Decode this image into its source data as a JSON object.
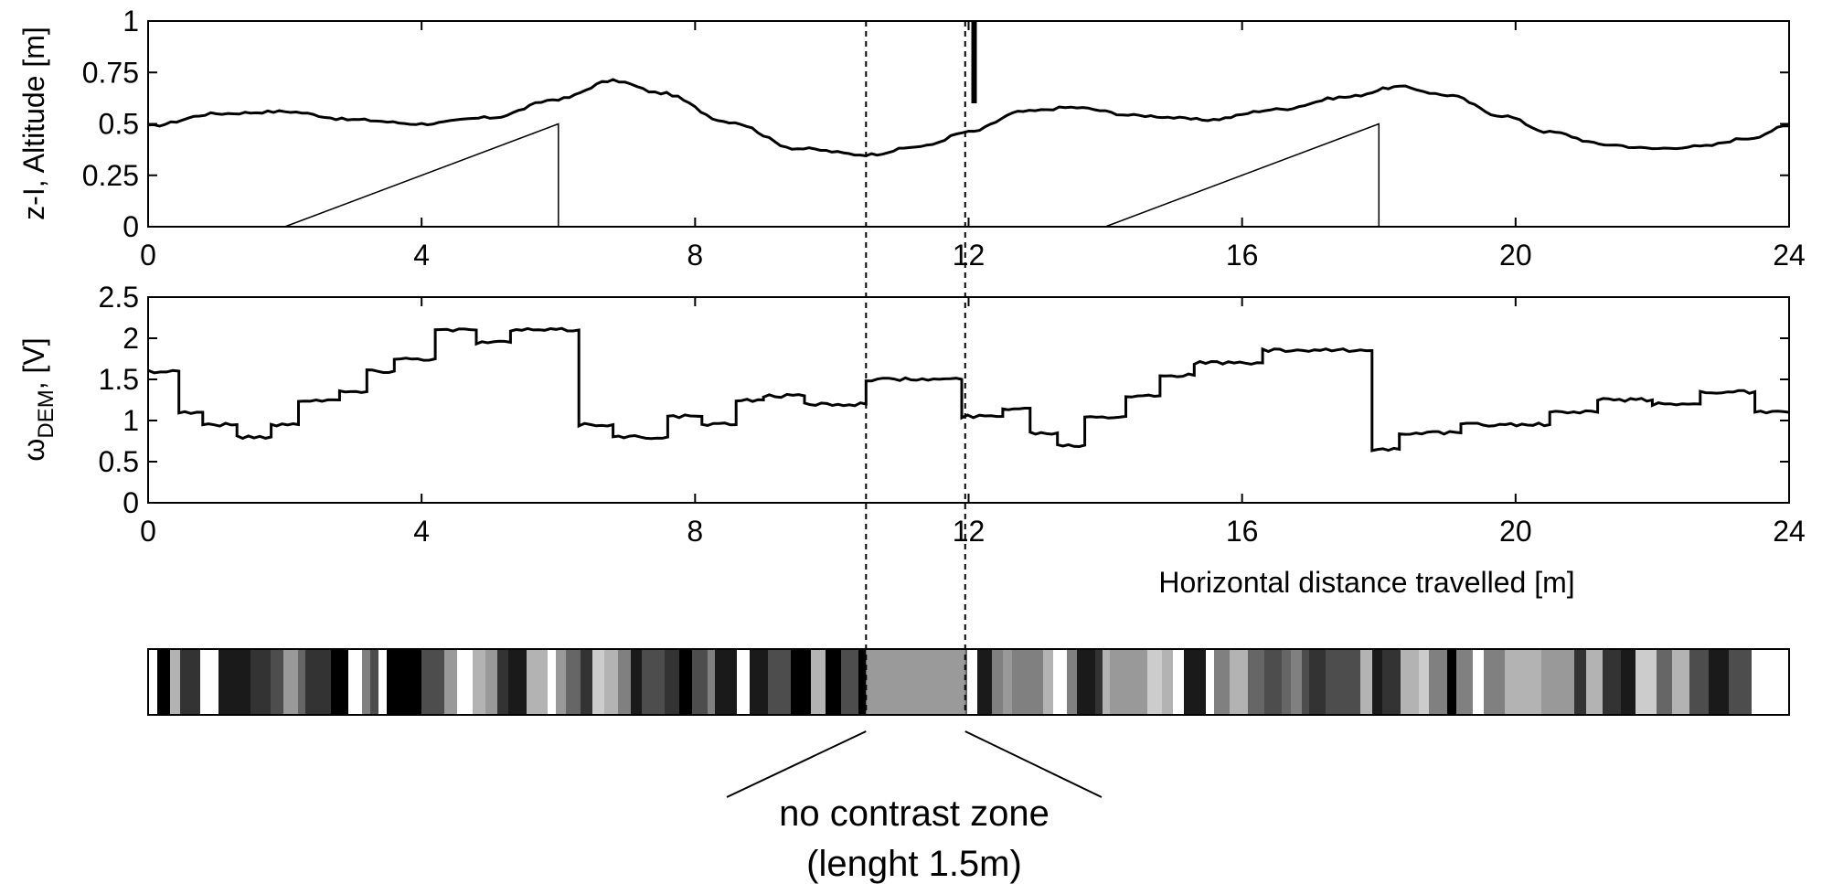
{
  "chart_data": [
    {
      "type": "line",
      "ylabel": "z-I, Altitude [m]",
      "xlim": [
        0,
        24
      ],
      "ylim": [
        0,
        1
      ],
      "x_ticks": [
        "0",
        "4",
        "8",
        "12",
        "16",
        "20",
        "24"
      ],
      "y_ticks": [
        "0",
        "0.25",
        "0.5",
        "0.75",
        "1"
      ],
      "series": [
        {
          "role": "altitude",
          "x": [
            0,
            1,
            2,
            3,
            4,
            5,
            6,
            6.8,
            7.5,
            8.5,
            9.5,
            10.5,
            11.3,
            12,
            12.8,
            13.5,
            14.5,
            15.5,
            16.5,
            17.5,
            18.3,
            19,
            19.8,
            20.5,
            21.3,
            22,
            22.7,
            23.4,
            24
          ],
          "y": [
            0.49,
            0.55,
            0.56,
            0.52,
            0.5,
            0.53,
            0.62,
            0.71,
            0.65,
            0.51,
            0.38,
            0.35,
            0.39,
            0.46,
            0.56,
            0.58,
            0.54,
            0.52,
            0.57,
            0.63,
            0.68,
            0.64,
            0.54,
            0.46,
            0.4,
            0.38,
            0.39,
            0.43,
            0.49
          ]
        },
        {
          "role": "ramp-1",
          "x": [
            2,
            6,
            6
          ],
          "y": [
            0,
            0.5,
            0
          ]
        },
        {
          "role": "ramp-2",
          "x": [
            14,
            18,
            18
          ],
          "y": [
            0,
            0.5,
            0
          ]
        }
      ],
      "event_marker": {
        "x": 12,
        "y_range": [
          0.6,
          1.0
        ]
      }
    },
    {
      "type": "line",
      "ylabel": "ω",
      "ylabel_subscript": "DEM",
      "ylabel_suffix": ", [V]",
      "xlabel": "Horizontal distance travelled [m]",
      "xlim": [
        0,
        24
      ],
      "ylim": [
        0,
        2.5
      ],
      "x_ticks": [
        "0",
        "4",
        "8",
        "12",
        "16",
        "20",
        "24"
      ],
      "y_ticks": [
        "0",
        "0.5",
        "1",
        "1.5",
        "2",
        "2.5"
      ],
      "series": [
        {
          "role": "output-voltage",
          "x": [
            0,
            0.45,
            0.45,
            0.8,
            0.8,
            1.3,
            1.3,
            1.8,
            1.8,
            2.2,
            2.2,
            2.8,
            2.8,
            3.2,
            3.2,
            3.6,
            3.6,
            4.2,
            4.2,
            4.8,
            4.8,
            5.3,
            5.3,
            6.3,
            6.3,
            6.8,
            6.8,
            7.6,
            7.6,
            8.1,
            8.1,
            8.6,
            8.6,
            9.0,
            9.0,
            9.6,
            9.6,
            10.5,
            10.5,
            11.9,
            11.9,
            12.5,
            12.5,
            12.9,
            12.9,
            13.3,
            13.3,
            13.7,
            13.7,
            14.3,
            14.3,
            14.8,
            14.8,
            15.3,
            15.3,
            16.3,
            16.3,
            17.9,
            17.9,
            18.3,
            18.3,
            19.2,
            19.2,
            20.5,
            20.5,
            21.2,
            21.2,
            22.0,
            22.0,
            22.7,
            22.7,
            23.5,
            23.5,
            24
          ],
          "y": [
            1.6,
            1.6,
            1.1,
            1.1,
            0.95,
            0.95,
            0.8,
            0.8,
            0.95,
            0.95,
            1.25,
            1.25,
            1.35,
            1.35,
            1.6,
            1.6,
            1.75,
            1.75,
            2.1,
            2.1,
            1.95,
            1.95,
            2.1,
            2.1,
            0.95,
            0.95,
            0.8,
            0.8,
            1.05,
            1.05,
            0.95,
            0.95,
            1.25,
            1.25,
            1.3,
            1.3,
            1.2,
            1.2,
            1.5,
            1.5,
            1.05,
            1.05,
            1.15,
            1.15,
            0.85,
            0.85,
            0.7,
            0.7,
            1.05,
            1.05,
            1.3,
            1.3,
            1.55,
            1.55,
            1.7,
            1.7,
            1.85,
            1.85,
            0.65,
            0.65,
            0.85,
            0.85,
            0.95,
            0.95,
            1.1,
            1.1,
            1.25,
            1.25,
            1.2,
            1.2,
            1.35,
            1.35,
            1.1,
            1.1
          ]
        }
      ]
    }
  ],
  "texture_strip": {
    "gap_start": 10.5,
    "gap_end": 11.95,
    "colors": [
      "#ffffff",
      "#1a1a1a",
      "#666666",
      "#999999",
      "#333333",
      "#cccccc",
      "#000000",
      "#808080",
      "#b3b3b3",
      "#4d4d4d"
    ]
  },
  "annotation": {
    "line1": "no contrast zone",
    "line2": "(lenght 1.5m)"
  }
}
